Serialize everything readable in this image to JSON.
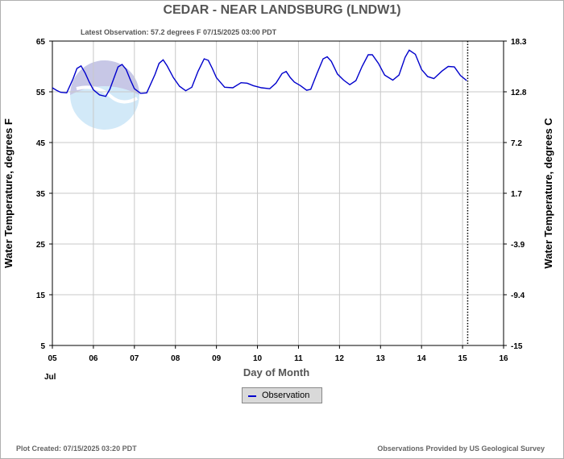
{
  "title": "CEDAR - NEAR LANDSBURG  (LNDW1)",
  "latest_observation": "Latest Observation: 57.2 degrees F 07/15/2025 03:00 PDT",
  "footer_left": "Plot Created: 07/15/2025 03:20 PDT",
  "footer_right": "Observations Provided by US Geological Survey",
  "chart_data": {
    "type": "line",
    "xlabel": "Day of Month",
    "xsublabel": "Jul",
    "ylabel_left": "Water Temperature, degrees F",
    "ylabel_right": "Water Temperature, degrees C",
    "xlim": [
      5,
      16
    ],
    "ylim": [
      5,
      65
    ],
    "x_ticks": [
      5,
      6,
      7,
      8,
      9,
      10,
      11,
      12,
      13,
      14,
      15,
      16
    ],
    "x_tick_labels": [
      "05",
      "06",
      "07",
      "08",
      "09",
      "10",
      "11",
      "12",
      "13",
      "14",
      "15",
      "16"
    ],
    "y_ticks_left": [
      5,
      15,
      25,
      35,
      45,
      55,
      65
    ],
    "y_tick_labels_left": [
      "5",
      "15",
      "25",
      "35",
      "45",
      "55",
      "65"
    ],
    "y_tick_labels_right": [
      "-15",
      "-9.4",
      "-3.9",
      "1.7",
      "7.2",
      "12.8",
      "18.3"
    ],
    "grid": true,
    "latest_marker_x": 15.125,
    "legend_position": "bottom-center",
    "colors": {
      "series": "#0000cc",
      "grid": "#c8c8c8",
      "marker": "#000000"
    },
    "series": [
      {
        "name": "Observation",
        "x": [
          5.0,
          5.1,
          5.2,
          5.35,
          5.5,
          5.6,
          5.7,
          5.8,
          5.9,
          6.0,
          6.15,
          6.3,
          6.4,
          6.5,
          6.6,
          6.7,
          6.8,
          6.9,
          7.0,
          7.15,
          7.3,
          7.5,
          7.6,
          7.7,
          7.8,
          7.95,
          8.1,
          8.25,
          8.4,
          8.55,
          8.7,
          8.8,
          8.9,
          9.0,
          9.2,
          9.4,
          9.6,
          9.75,
          9.9,
          10.1,
          10.3,
          10.45,
          10.6,
          10.7,
          10.8,
          10.9,
          11.05,
          11.2,
          11.3,
          11.45,
          11.6,
          11.7,
          11.8,
          11.95,
          12.1,
          12.25,
          12.4,
          12.55,
          12.7,
          12.8,
          12.95,
          13.1,
          13.3,
          13.45,
          13.6,
          13.7,
          13.85,
          14.0,
          14.15,
          14.3,
          14.5,
          14.65,
          14.8,
          14.95,
          15.1
        ],
        "y": [
          55.8,
          55.3,
          54.9,
          54.8,
          57.5,
          59.6,
          60.1,
          58.7,
          56.9,
          55.4,
          54.4,
          54.1,
          55.5,
          57.7,
          59.9,
          60.4,
          59.4,
          57.4,
          55.6,
          54.7,
          54.8,
          58.4,
          60.6,
          61.3,
          60.1,
          57.8,
          56.1,
          55.2,
          55.9,
          59.0,
          61.5,
          61.2,
          59.6,
          57.8,
          55.9,
          55.8,
          56.8,
          56.7,
          56.2,
          55.8,
          55.6,
          56.7,
          58.6,
          59.0,
          57.8,
          56.9,
          56.2,
          55.3,
          55.5,
          58.6,
          61.5,
          61.9,
          61.0,
          58.5,
          57.3,
          56.4,
          57.2,
          60.0,
          62.3,
          62.3,
          60.6,
          58.3,
          57.3,
          58.3,
          61.8,
          63.2,
          62.4,
          59.4,
          58.0,
          57.6,
          59.1,
          60.0,
          59.9,
          58.2,
          57.2
        ]
      }
    ]
  }
}
